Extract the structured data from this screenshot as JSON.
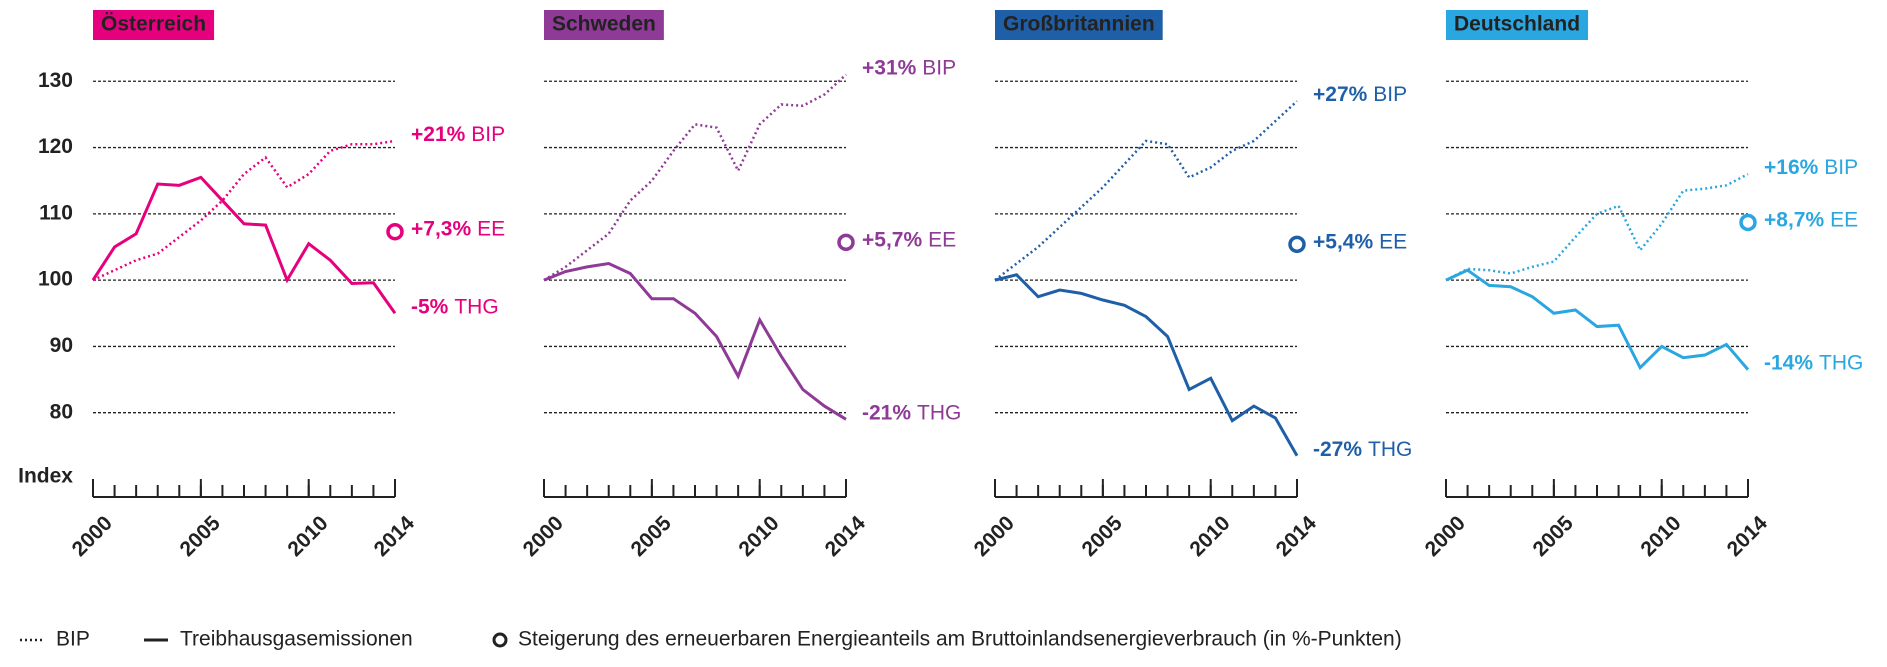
{
  "chart_data": [
    {
      "type": "line",
      "title": "Österreich",
      "color": "#e6007e",
      "ylabel": "Index",
      "x": [
        2000,
        2001,
        2002,
        2003,
        2004,
        2005,
        2006,
        2007,
        2008,
        2009,
        2010,
        2011,
        2012,
        2013,
        2014
      ],
      "xticks": [
        2000,
        2005,
        2010,
        2014
      ],
      "xlim": [
        2000,
        2014
      ],
      "ylim": [
        70,
        132
      ],
      "yticks": [
        80,
        90,
        100,
        110,
        120,
        130
      ],
      "grid": true,
      "series": [
        {
          "name": "BIP",
          "label": "BIP",
          "change": "+21%",
          "values": [
            100,
            101.5,
            103,
            104,
            106.5,
            109,
            112,
            116,
            118.5,
            114,
            116,
            119.5,
            120.5,
            120.5,
            121
          ]
        },
        {
          "name": "Treibhausgasemissionen",
          "label": "THG",
          "change": "-5%",
          "values": [
            100,
            105,
            107,
            114.5,
            114.3,
            115.5,
            112,
            108.5,
            108.3,
            100,
            105.5,
            103,
            99.5,
            99.6,
            95
          ]
        }
      ],
      "ee": {
        "value": 107.3,
        "change": "+7,3%",
        "label": "EE"
      }
    },
    {
      "type": "line",
      "title": "Schweden",
      "color": "#8e3a96",
      "x": [
        2000,
        2001,
        2002,
        2003,
        2004,
        2005,
        2006,
        2007,
        2008,
        2009,
        2010,
        2011,
        2012,
        2013,
        2014
      ],
      "xticks": [
        2000,
        2005,
        2010,
        2014
      ],
      "xlim": [
        2000,
        2014
      ],
      "ylim": [
        70,
        132
      ],
      "yticks": [
        80,
        90,
        100,
        110,
        120,
        130
      ],
      "grid": true,
      "series": [
        {
          "name": "BIP",
          "label": "BIP",
          "change": "+31%",
          "values": [
            100,
            102,
            104.5,
            107,
            112,
            115,
            119.5,
            123.5,
            123,
            116.5,
            123.5,
            126.5,
            126.3,
            128,
            131
          ]
        },
        {
          "name": "Treibhausgasemissionen",
          "label": "THG",
          "change": "-21%",
          "values": [
            100,
            101.3,
            102,
            102.5,
            101,
            97.2,
            97.2,
            95,
            91.5,
            85.5,
            94,
            88.5,
            83.5,
            81,
            79
          ]
        }
      ],
      "ee": {
        "value": 105.7,
        "change": "+5,7%",
        "label": "EE"
      }
    },
    {
      "type": "line",
      "title": "Großbritannien",
      "color": "#1f5fa8",
      "x": [
        2000,
        2001,
        2002,
        2003,
        2004,
        2005,
        2006,
        2007,
        2008,
        2009,
        2010,
        2011,
        2012,
        2013,
        2014
      ],
      "xticks": [
        2000,
        2005,
        2010,
        2014
      ],
      "xlim": [
        2000,
        2014
      ],
      "ylim": [
        70,
        132
      ],
      "yticks": [
        80,
        90,
        100,
        110,
        120,
        130
      ],
      "grid": true,
      "series": [
        {
          "name": "BIP",
          "label": "BIP",
          "change": "+27%",
          "values": [
            100,
            102.5,
            105,
            108,
            111,
            114,
            117.5,
            121,
            120.5,
            115.5,
            117,
            119.5,
            121,
            124,
            127
          ]
        },
        {
          "name": "Treibhausgasemissionen",
          "label": "THG",
          "change": "-27%",
          "values": [
            100,
            100.8,
            97.5,
            98.5,
            98,
            97,
            96.2,
            94.5,
            91.5,
            83.5,
            85.2,
            78.8,
            81,
            79.2,
            73.5
          ]
        }
      ],
      "ee": {
        "value": 105.4,
        "change": "+5,4%",
        "label": "EE"
      }
    },
    {
      "type": "line",
      "title": "Deutschland",
      "color": "#2aa7e0",
      "x": [
        2000,
        2001,
        2002,
        2003,
        2004,
        2005,
        2006,
        2007,
        2008,
        2009,
        2010,
        2011,
        2012,
        2013,
        2014
      ],
      "xticks": [
        2000,
        2005,
        2010,
        2014
      ],
      "xlim": [
        2000,
        2014
      ],
      "ylim": [
        70,
        132
      ],
      "yticks": [
        80,
        90,
        100,
        110,
        120,
        130
      ],
      "grid": true,
      "series": [
        {
          "name": "BIP",
          "label": "BIP",
          "change": "+16%",
          "values": [
            100,
            101.7,
            101.5,
            101,
            102,
            102.8,
            106.5,
            110,
            111.2,
            104.5,
            108.5,
            113.5,
            113.8,
            114.3,
            116
          ]
        },
        {
          "name": "Treibhausgasemissionen",
          "label": "THG",
          "change": "-14%",
          "values": [
            100,
            101.5,
            99.2,
            99,
            97.5,
            95,
            95.5,
            93,
            93.2,
            86.8,
            90,
            88.3,
            88.7,
            90.3,
            86.5
          ]
        }
      ],
      "ee": {
        "value": 108.7,
        "change": "+8,7%",
        "label": "EE"
      }
    }
  ],
  "legend_note": "Steigerung des erneuerbaren Energieanteils am Bruttoinlandsenergieverbrauch (in %-Punkten)"
}
